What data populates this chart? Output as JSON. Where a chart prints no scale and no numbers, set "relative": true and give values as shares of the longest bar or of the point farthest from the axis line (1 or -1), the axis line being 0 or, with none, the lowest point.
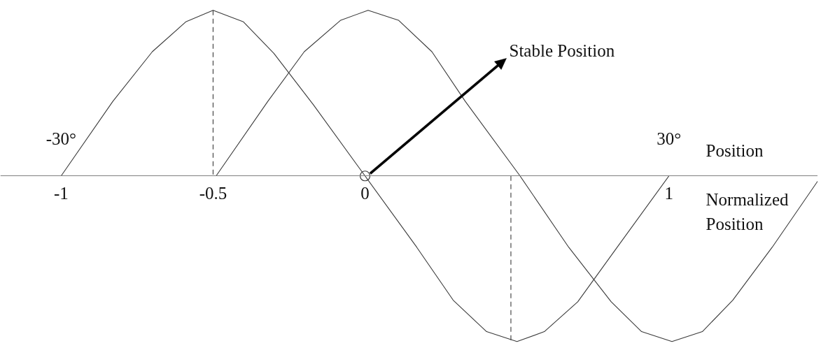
{
  "chart_data": {
    "type": "line",
    "relative": true,
    "xlabel": "Normalized Position",
    "x2label": "Position",
    "xlim": [
      -1.2,
      1.49
    ],
    "xticks": [
      -1,
      -0.5,
      0,
      1
    ],
    "x2lim": [
      -36,
      44.7
    ],
    "x2ticks": [
      {
        "value": -30,
        "label": "-30°"
      },
      {
        "value": 30,
        "label": "30°"
      }
    ],
    "annotations": [
      "Stable Position"
    ],
    "line_style": "solid",
    "marker": "none",
    "series": [
      {
        "color": "#3a3a3a",
        "x": [
          -1.0,
          -0.83,
          -0.7,
          -0.59,
          -0.5,
          -0.4,
          -0.3,
          -0.17,
          0,
          0.17,
          0.29,
          0.4,
          0.5,
          0.59,
          0.7,
          0.83,
          1.0
        ],
        "values": [
          0,
          0.45,
          0.75,
          0.93,
          1.0,
          0.93,
          0.74,
          0.43,
          0,
          -0.43,
          -0.75,
          -0.94,
          -1.0,
          -0.94,
          -0.76,
          -0.43,
          0
        ]
      },
      {
        "color": "#3a3a3a",
        "x": [
          -0.49,
          -0.32,
          -0.2,
          -0.08,
          0.01,
          0.11,
          0.22,
          0.33,
          0.51,
          0.67,
          0.81,
          0.91,
          1.01,
          1.11,
          1.21,
          1.34,
          1.49
        ],
        "values": [
          0,
          0.45,
          0.75,
          0.94,
          1.0,
          0.94,
          0.75,
          0.45,
          0,
          -0.43,
          -0.76,
          -0.94,
          -1.0,
          -0.94,
          -0.75,
          -0.43,
          -0.03
        ]
      },
      {
        "color": "#3a3a3a",
        "line_style": "dashed",
        "x": [
          -0.5,
          -0.5
        ],
        "values": [
          1.0,
          0
        ]
      },
      {
        "color": "#3a3a3a",
        "line_style": "dashed",
        "x": [
          0.48,
          0.48
        ],
        "values": [
          0,
          -1.0
        ]
      },
      {
        "type": "scatter",
        "marker": "circle",
        "color": "#3a3a3a",
        "x": [
          0
        ],
        "values": [
          0
        ]
      }
    ]
  }
}
